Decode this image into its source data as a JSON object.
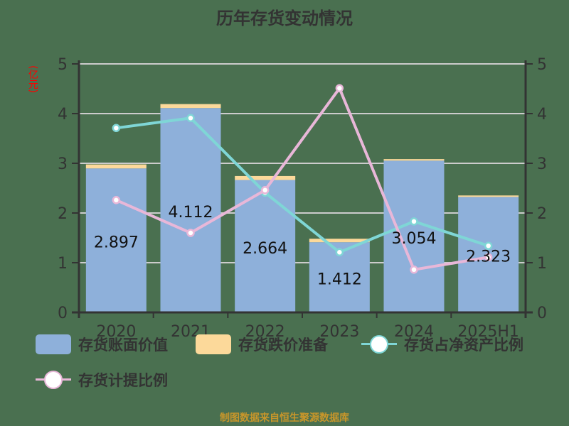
{
  "title": "历年存货变动情况",
  "unit_label": "(亿元)",
  "footer": "制图数据来自恒生聚源数据库",
  "colors": {
    "background": "#4a7050",
    "book_value": "#8eb0da",
    "reserve": "#fcd99a",
    "ratio_net_assets": "#7fd6d6",
    "provision_ratio": "#e8b7d8",
    "axis": "#333333",
    "grid": "#cccccc",
    "unit": "#ff0000",
    "footer": "#c8962a"
  },
  "legend": [
    {
      "label": "存货账面价值",
      "type": "box",
      "color": "#8eb0da"
    },
    {
      "label": "存货跌价准备",
      "type": "box",
      "color": "#fcd99a"
    },
    {
      "label": "存货占净资产比例",
      "type": "line",
      "color": "#7fd6d6"
    },
    {
      "label": "存货计提比例",
      "type": "line",
      "color": "#e8b7d8"
    }
  ],
  "chart_data": {
    "type": "bar",
    "title": "历年存货变动情况",
    "xlabel": "",
    "ylabel": "(亿元)",
    "categories": [
      "2020",
      "2021",
      "2022",
      "2023",
      "2024",
      "2025H1"
    ],
    "ylim_left": [
      0,
      5
    ],
    "ylim_right": [
      0,
      5
    ],
    "yticks": [
      0,
      1,
      2,
      3,
      4,
      5
    ],
    "grid": true,
    "legend_position": "bottom",
    "series": [
      {
        "name": "存货账面价值",
        "type": "bar",
        "stack": "inventory",
        "axis": "left",
        "values": [
          2.897,
          4.112,
          2.664,
          1.412,
          3.054,
          2.323
        ],
        "labels": [
          "2.897",
          "4.112",
          "2.664",
          "1.412",
          "3.054",
          "2.323"
        ]
      },
      {
        "name": "存货跌价准备",
        "type": "bar",
        "stack": "inventory",
        "axis": "left",
        "values": [
          0.08,
          0.08,
          0.08,
          0.07,
          0.03,
          0.03
        ]
      },
      {
        "name": "存货占净资产比例",
        "type": "line",
        "axis": "right",
        "values": [
          3.71,
          3.91,
          2.41,
          1.21,
          1.83,
          1.34
        ]
      },
      {
        "name": "存货计提比例",
        "type": "line",
        "axis": "right",
        "values": [
          2.26,
          1.6,
          2.46,
          4.51,
          0.86,
          1.11
        ]
      }
    ]
  }
}
